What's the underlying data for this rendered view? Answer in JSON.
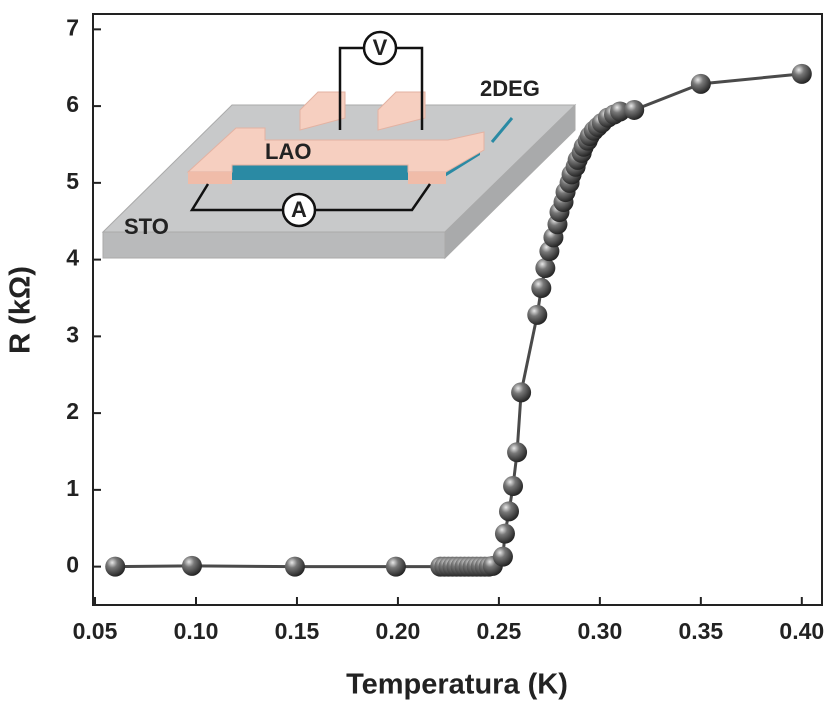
{
  "chart_data": {
    "type": "scatter",
    "line": true,
    "x_label": "Temperatura (K)",
    "y_label": "R (kΩ)",
    "color": "#4a4a4a",
    "annotations": [
      "V",
      "2DEG",
      "LAO",
      "A",
      "STO"
    ],
    "x": [
      0.06,
      0.098,
      0.149,
      0.199,
      0.221,
      0.223,
      0.225,
      0.227,
      0.229,
      0.231,
      0.233,
      0.235,
      0.237,
      0.239,
      0.241,
      0.243,
      0.245,
      0.247,
      0.252,
      0.253,
      0.255,
      0.257,
      0.259,
      0.261,
      0.269,
      0.271,
      0.273,
      0.275,
      0.277,
      0.279,
      0.28,
      0.282,
      0.283,
      0.285,
      0.286,
      0.288,
      0.289,
      0.291,
      0.292,
      0.294,
      0.295,
      0.297,
      0.299,
      0.301,
      0.304,
      0.307,
      0.31,
      0.317,
      0.35,
      0.4
    ],
    "values": [
      0.0,
      0.01,
      0.0,
      0.0,
      0.0,
      0.0,
      0.0,
      0.0,
      0.0,
      0.0,
      0.0,
      0.0,
      0.0,
      0.0,
      0.0,
      0.0,
      0.0,
      0.01,
      0.13,
      0.43,
      0.72,
      1.05,
      1.49,
      2.27,
      3.28,
      3.63,
      3.89,
      4.11,
      4.29,
      4.46,
      4.62,
      4.75,
      4.88,
      5.0,
      5.11,
      5.21,
      5.3,
      5.39,
      5.47,
      5.55,
      5.61,
      5.68,
      5.73,
      5.78,
      5.85,
      5.89,
      5.93,
      5.95,
      6.29,
      6.42
    ],
    "xlim": [
      0.049,
      0.41
    ],
    "ylim": [
      -0.5,
      7.2
    ],
    "xticks": [
      0.05,
      {
        "value": 0.1,
        "label": "0.10"
      },
      0.15,
      {
        "value": 0.2,
        "label": "0.20"
      },
      0.25,
      {
        "value": 0.3,
        "label": "0.30"
      },
      0.35,
      {
        "value": 0.4,
        "label": "0.40"
      }
    ],
    "yticks": [
      0,
      1,
      2,
      3,
      4,
      5,
      6,
      7
    ]
  }
}
